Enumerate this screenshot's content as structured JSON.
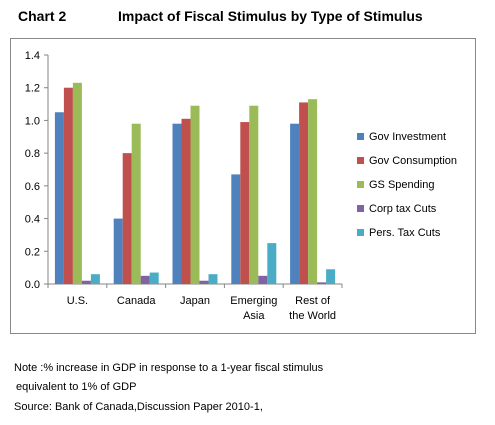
{
  "header": {
    "chart_label": "Chart 2",
    "title": "Impact of Fiscal Stimulus by Type of Stimulus"
  },
  "footer": {
    "note_line1": "Note :% increase in GDP in response to a 1-year fiscal stimulus",
    "note_line2": "equivalent to 1% of GDP",
    "source": "Source: Bank of Canada,Discussion Paper 2010-1,"
  },
  "chart_data": {
    "type": "bar",
    "title": "Impact of Fiscal Stimulus by Type of Stimulus",
    "xlabel": "",
    "ylabel": "",
    "categories": [
      [
        "U.S."
      ],
      [
        "Canada"
      ],
      [
        "Japan"
      ],
      [
        "Emerging",
        "Asia"
      ],
      [
        "Rest of",
        "the World"
      ]
    ],
    "series": [
      {
        "name": "Gov Investment",
        "color": "#4f81bd",
        "values": [
          1.05,
          0.4,
          0.98,
          0.67,
          0.98
        ]
      },
      {
        "name": "Gov Consumption",
        "color": "#c0504d",
        "values": [
          1.2,
          0.8,
          1.01,
          0.99,
          1.11
        ]
      },
      {
        "name": "GS Spending",
        "color": "#9bbb59",
        "values": [
          1.23,
          0.98,
          1.09,
          1.09,
          1.13
        ]
      },
      {
        "name": "Corp tax Cuts",
        "color": "#8064a2",
        "values": [
          0.02,
          0.05,
          0.02,
          0.05,
          0.01
        ]
      },
      {
        "name": "Pers. Tax Cuts",
        "color": "#4bacc6",
        "values": [
          0.06,
          0.07,
          0.06,
          0.25,
          0.09
        ]
      }
    ],
    "ylim": [
      0,
      1.4
    ],
    "yticks": [
      "0.0",
      "0.2",
      "0.4",
      "0.6",
      "0.8",
      "1.0",
      "1.2",
      "1.4"
    ],
    "grid": false,
    "legend_position": "right"
  }
}
